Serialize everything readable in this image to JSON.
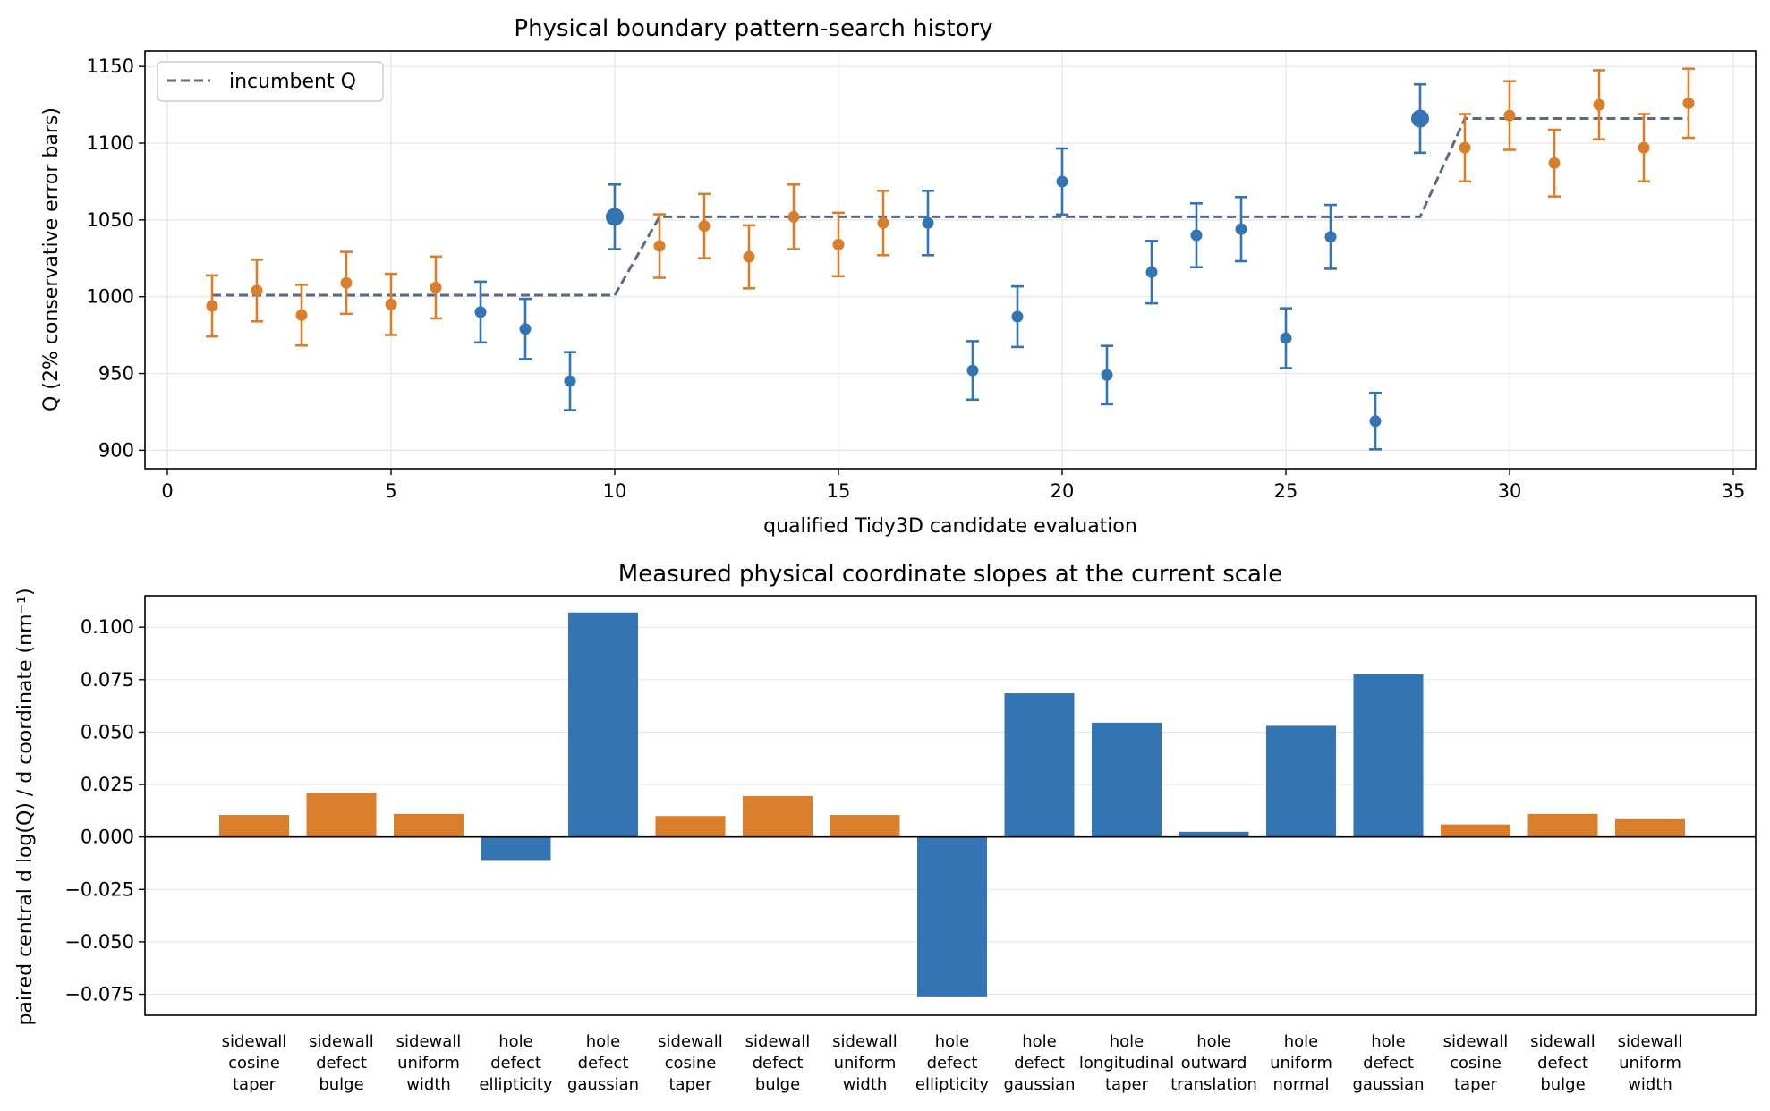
{
  "chart_data": [
    {
      "type": "scatter",
      "title": "Physical boundary pattern-search history",
      "xlabel": "qualified Tidy3D candidate evaluation",
      "ylabel": "Q (2% conservative error bars)",
      "xlim": [
        -0.5,
        35.5
      ],
      "ylim": [
        888,
        1160
      ],
      "xticks": [
        0,
        5,
        10,
        15,
        20,
        25,
        30,
        35
      ],
      "yticks": [
        900,
        950,
        1000,
        1050,
        1100,
        1150
      ],
      "grid": true,
      "legend": {
        "placement": "top-left",
        "entries": [
          "incumbent Q"
        ]
      },
      "error_bar_fraction": 0.02,
      "colors": {
        "orange": "#d97f2b",
        "blue": "#3274b4",
        "incumbent": "#5a6a85"
      },
      "points": [
        {
          "x": 1,
          "y": 994,
          "group": "orange"
        },
        {
          "x": 2,
          "y": 1004,
          "group": "orange"
        },
        {
          "x": 3,
          "y": 988,
          "group": "orange"
        },
        {
          "x": 4,
          "y": 1009,
          "group": "orange"
        },
        {
          "x": 5,
          "y": 995,
          "group": "orange"
        },
        {
          "x": 6,
          "y": 1006,
          "group": "orange"
        },
        {
          "x": 7,
          "y": 990,
          "group": "blue"
        },
        {
          "x": 8,
          "y": 979,
          "group": "blue"
        },
        {
          "x": 9,
          "y": 945,
          "group": "blue"
        },
        {
          "x": 10,
          "y": 1052,
          "group": "blue",
          "highlight": true
        },
        {
          "x": 11,
          "y": 1033,
          "group": "orange"
        },
        {
          "x": 12,
          "y": 1046,
          "group": "orange"
        },
        {
          "x": 13,
          "y": 1026,
          "group": "orange"
        },
        {
          "x": 14,
          "y": 1052,
          "group": "orange"
        },
        {
          "x": 15,
          "y": 1034,
          "group": "orange"
        },
        {
          "x": 16,
          "y": 1048,
          "group": "orange"
        },
        {
          "x": 17,
          "y": 1048,
          "group": "blue"
        },
        {
          "x": 18,
          "y": 952,
          "group": "blue"
        },
        {
          "x": 19,
          "y": 987,
          "group": "blue"
        },
        {
          "x": 20,
          "y": 1075,
          "group": "blue"
        },
        {
          "x": 21,
          "y": 949,
          "group": "blue"
        },
        {
          "x": 22,
          "y": 1016,
          "group": "blue"
        },
        {
          "x": 23,
          "y": 1040,
          "group": "blue"
        },
        {
          "x": 24,
          "y": 1044,
          "group": "blue"
        },
        {
          "x": 25,
          "y": 973,
          "group": "blue"
        },
        {
          "x": 26,
          "y": 1039,
          "group": "blue"
        },
        {
          "x": 27,
          "y": 919,
          "group": "blue"
        },
        {
          "x": 28,
          "y": 1116,
          "group": "blue",
          "highlight": true
        },
        {
          "x": 29,
          "y": 1097,
          "group": "orange"
        },
        {
          "x": 30,
          "y": 1118,
          "group": "orange"
        },
        {
          "x": 31,
          "y": 1087,
          "group": "orange"
        },
        {
          "x": 32,
          "y": 1125,
          "group": "orange"
        },
        {
          "x": 33,
          "y": 1097,
          "group": "orange"
        },
        {
          "x": 34,
          "y": 1126,
          "group": "orange"
        }
      ],
      "incumbent_series": {
        "name": "incumbent Q",
        "x": [
          1,
          10,
          11,
          28,
          29,
          34
        ],
        "y": [
          1001,
          1001,
          1052,
          1052,
          1116,
          1116
        ]
      }
    },
    {
      "type": "bar",
      "title": "Measured physical coordinate slopes at the current scale",
      "xlabel": "",
      "ylabel": "paired central d log(Q) / d coordinate (nm⁻¹)",
      "ylim": [
        -0.085,
        0.115
      ],
      "yticks": [
        "0.100",
        "0.075",
        "0.050",
        "0.025",
        "0.000",
        "−0.025",
        "−0.050",
        "−0.075"
      ],
      "ytick_values": [
        0.1,
        0.075,
        0.05,
        0.025,
        0,
        -0.025,
        -0.05,
        -0.075
      ],
      "grid": true,
      "categories": [
        [
          "sidewall",
          "cosine",
          "taper"
        ],
        [
          "sidewall",
          "defect",
          "bulge"
        ],
        [
          "sidewall",
          "uniform",
          "width"
        ],
        [
          "hole",
          "defect",
          "ellipticity"
        ],
        [
          "hole",
          "defect",
          "gaussian"
        ],
        [
          "sidewall",
          "cosine",
          "taper"
        ],
        [
          "sidewall",
          "defect",
          "bulge"
        ],
        [
          "sidewall",
          "uniform",
          "width"
        ],
        [
          "hole",
          "defect",
          "ellipticity"
        ],
        [
          "hole",
          "defect",
          "gaussian"
        ],
        [
          "hole",
          "longitudinal",
          "taper"
        ],
        [
          "hole",
          "outward",
          "translation"
        ],
        [
          "hole",
          "uniform",
          "normal"
        ],
        [
          "hole",
          "defect",
          "gaussian"
        ],
        [
          "sidewall",
          "cosine",
          "taper"
        ],
        [
          "sidewall",
          "defect",
          "bulge"
        ],
        [
          "sidewall",
          "uniform",
          "width"
        ]
      ],
      "values": [
        0.0105,
        0.021,
        0.011,
        -0.011,
        0.107,
        0.01,
        0.0195,
        0.0105,
        -0.076,
        0.0685,
        0.0545,
        0.0025,
        0.053,
        0.0775,
        0.006,
        0.011,
        0.0085
      ],
      "bar_groups": [
        "orange",
        "orange",
        "orange",
        "blue",
        "blue",
        "orange",
        "orange",
        "orange",
        "blue",
        "blue",
        "blue",
        "blue",
        "blue",
        "blue",
        "orange",
        "orange",
        "orange"
      ]
    }
  ]
}
